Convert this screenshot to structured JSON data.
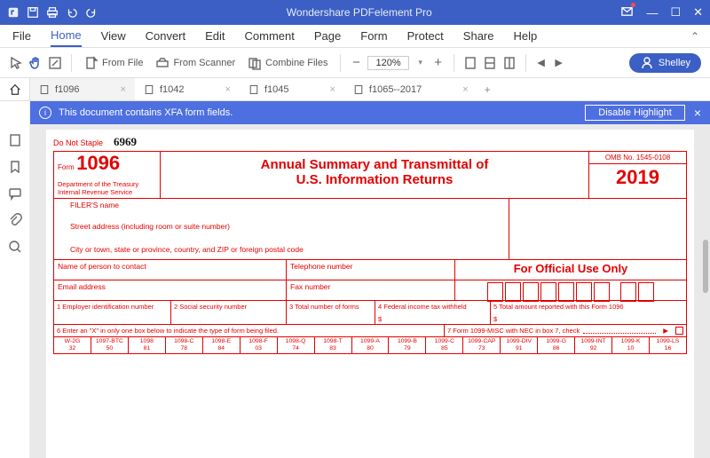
{
  "app": {
    "title": "Wondershare PDFelement Pro"
  },
  "menu": {
    "items": [
      "File",
      "Home",
      "View",
      "Convert",
      "Edit",
      "Comment",
      "Page",
      "Form",
      "Protect",
      "Share",
      "Help"
    ],
    "active": "Home"
  },
  "toolbar": {
    "from_file": "From File",
    "from_scanner": "From Scanner",
    "combine": "Combine Files",
    "zoom": "120%",
    "user": "Shelley"
  },
  "tabs": {
    "items": [
      {
        "label": "f1096",
        "active": true
      },
      {
        "label": "f1042",
        "active": false
      },
      {
        "label": "f1045",
        "active": false
      },
      {
        "label": "f1065--2017",
        "active": false
      }
    ]
  },
  "notif": {
    "message": "This document contains XFA form fields.",
    "button": "Disable Highlight"
  },
  "form": {
    "do_not_staple": "Do Not Staple",
    "handwrite": "6969",
    "form_word": "Form",
    "form_no": "1096",
    "dept1": "Department of the Treasury",
    "dept2": "Internal Revenue Service",
    "title1": "Annual Summary and Transmittal of",
    "title2": "U.S. Information Returns",
    "omb": "OMB No. 1545-0108",
    "year_a": "20",
    "year_b": "19",
    "filer_name": "FILER'S name",
    "street": "Street address (including room or suite number)",
    "city": "City or town, state or province, country, and ZIP or foreign postal code",
    "contact": "Name of person to contact",
    "phone": "Telephone number",
    "email": "Email address",
    "fax": "Fax number",
    "official": "For Official Use Only",
    "box1": "1 Employer identification number",
    "box2": "2 Social security number",
    "box3": "3 Total number of forms",
    "box4": "4 Federal income tax withheld",
    "box5": "5 Total amount reported with this Form 1096",
    "box6": "6 Enter an \"X\" in only one box below to indicate the type of form being filed.",
    "box7": "7 Form 1099-MISC with NEC in box 7, check",
    "dollar": "$",
    "codes": [
      {
        "t": "W-2G",
        "n": "32"
      },
      {
        "t": "1097-BTC",
        "n": "50"
      },
      {
        "t": "1098",
        "n": "81"
      },
      {
        "t": "1098-C",
        "n": "78"
      },
      {
        "t": "1098-E",
        "n": "84"
      },
      {
        "t": "1098-F",
        "n": "03"
      },
      {
        "t": "1098-Q",
        "n": "74"
      },
      {
        "t": "1098-T",
        "n": "83"
      },
      {
        "t": "1099-A",
        "n": "80"
      },
      {
        "t": "1099-B",
        "n": "79"
      },
      {
        "t": "1099-C",
        "n": "85"
      },
      {
        "t": "1099-CAP",
        "n": "73"
      },
      {
        "t": "1099-DIV",
        "n": "91"
      },
      {
        "t": "1099-G",
        "n": "86"
      },
      {
        "t": "1099-INT",
        "n": "92"
      },
      {
        "t": "1099-K",
        "n": "10"
      },
      {
        "t": "1099-LS",
        "n": "16"
      }
    ]
  }
}
